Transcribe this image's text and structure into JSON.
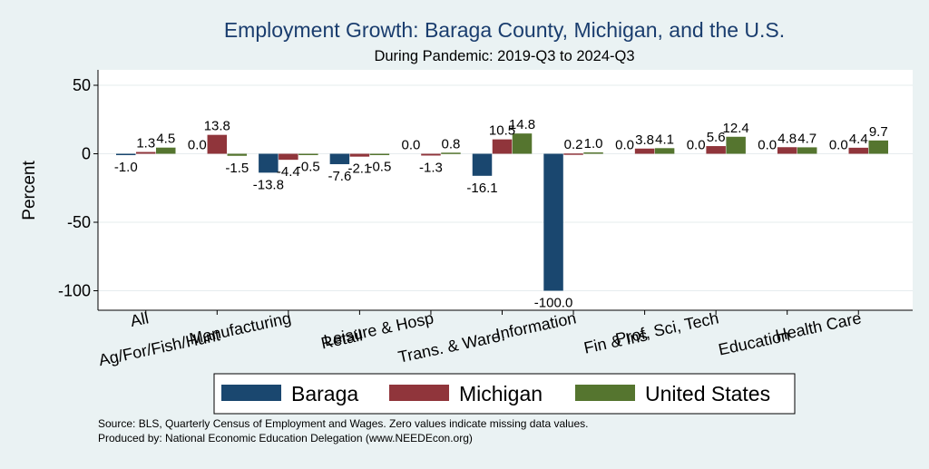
{
  "colors": {
    "background": "#eaf2f3",
    "plot_background": "#ffffff",
    "gridline": "#e6ecee",
    "title": "#1a3d6e"
  },
  "chart_data": {
    "type": "bar",
    "title": "Employment Growth: Baraga County, Michigan, and the U.S.",
    "subtitle": "During Pandemic: 2019-Q3 to 2024-Q3",
    "ylabel": "Percent",
    "xlabel": "",
    "ylim": [
      -105,
      55
    ],
    "yticks": [
      50,
      0,
      -50,
      -100
    ],
    "grid": true,
    "categories": [
      "All",
      "Ag/For/Fish/Hunt",
      "Manufacturing",
      "Retail",
      "Leisure & Hosp",
      "Trans. & Ware.",
      "Information",
      "Fin & Ins",
      "Prof, Sci, Tech",
      "Education",
      "Health Care"
    ],
    "series": [
      {
        "name": "Baraga",
        "color": "#1a476f",
        "values": [
          -1.0,
          0.0,
          -13.8,
          -7.6,
          0.0,
          -16.1,
          -100.0,
          0.0,
          0.0,
          0.0,
          0.0
        ],
        "labels": [
          "-1.0",
          "0.0",
          "-13.8",
          "-7.6",
          "0.0",
          "-16.1",
          "-100.0",
          "0.0",
          "0.0",
          "0.0",
          "0.0"
        ]
      },
      {
        "name": "Michigan",
        "color": "#90353b",
        "values": [
          1.3,
          13.8,
          -4.4,
          -2.1,
          -1.3,
          10.5,
          0.2,
          3.8,
          5.6,
          4.8,
          4.4
        ],
        "labels": [
          "1.3",
          "13.8",
          "-4.4",
          "-2.1",
          "-1.3",
          "10.5",
          "0.2",
          "3.8",
          "5.6",
          "4.8",
          "4.4"
        ]
      },
      {
        "name": "United States",
        "color": "#55752f",
        "values": [
          4.5,
          -1.5,
          -0.5,
          -0.5,
          0.8,
          14.8,
          1.0,
          4.1,
          12.4,
          4.7,
          9.7
        ],
        "labels": [
          "4.5",
          "-1.5",
          "-0.5",
          "-0.5",
          "0.8",
          "14.8",
          "1.0",
          "4.1",
          "12.4",
          "4.7",
          "9.7"
        ]
      }
    ],
    "legend_position": "bottom"
  },
  "footer": {
    "source": "Source: BLS, Quarterly Census of Employment and Wages. Zero values indicate missing data values.",
    "produced_by": "Produced by: National Economic Education Delegation (www.NEEDEcon.org)"
  }
}
